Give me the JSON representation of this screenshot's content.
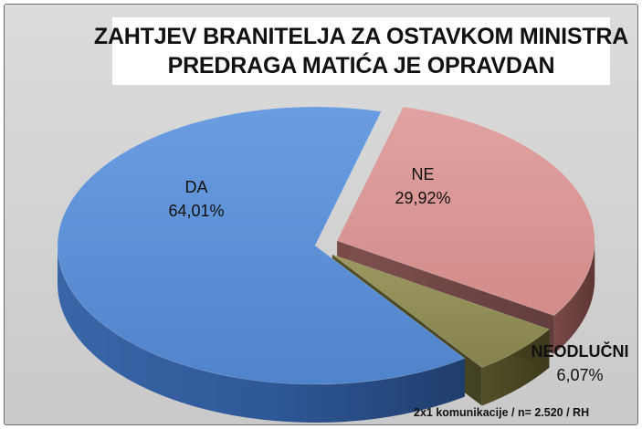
{
  "title": {
    "line1": "ZAHTJEV BRANITELJA ZA OSTAVKOM MINISTRA",
    "line2": "PREDRAGA MATIĆA JE OPRAVDAN"
  },
  "footnote": "2x1 komunikacije / n= 2.520 / RH",
  "chart_data": {
    "type": "pie",
    "title": "ZAHTJEV BRANITELJA ZA OSTAVKOM MINISTRA PREDRAGA MATIĆA JE OPRAVDAN",
    "slices": [
      {
        "label": "DA",
        "value": 64.01,
        "value_label": "64,01%",
        "color": "#5b8fd6"
      },
      {
        "label": "NE",
        "value": 29.92,
        "value_label": "29,92%",
        "color": "#d99593"
      },
      {
        "label": "NEODLUČNI",
        "value": 6.07,
        "value_label": "6,07%",
        "color": "#8f8c55"
      }
    ],
    "exploded": [
      "NE",
      "NEODLUČNI"
    ],
    "three_d": true
  }
}
